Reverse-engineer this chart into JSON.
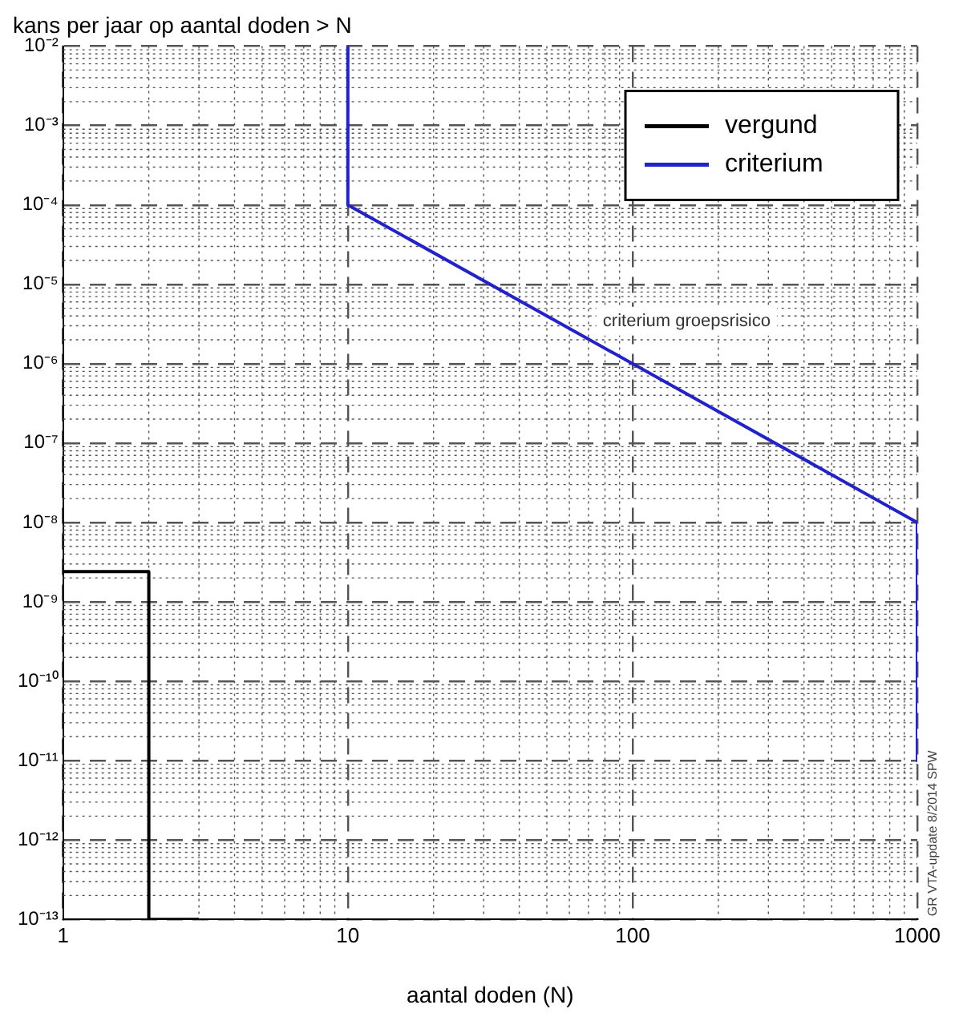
{
  "chart_data": {
    "type": "line",
    "title": "kans per jaar op aantal doden > N",
    "xlabel": "aantal doden (N)",
    "log": "xy",
    "grid": true,
    "legend": "top right",
    "marker": "none",
    "line_style": "solid",
    "xlim": [
      1,
      1000
    ],
    "xticks": [
      1,
      10,
      100,
      1000
    ],
    "ylim": [
      1e-13,
      0.01
    ],
    "yticks": [
      {
        "value": 1e-13,
        "label": "10⁻¹³"
      },
      {
        "value": 1e-12,
        "label": "10⁻¹²"
      },
      {
        "value": 1e-11,
        "label": "10⁻¹¹"
      },
      {
        "value": 1e-10,
        "label": "10⁻¹⁰"
      },
      {
        "value": 1e-09,
        "label": "10⁻⁹"
      },
      {
        "value": 1e-08,
        "label": "10⁻⁸"
      },
      {
        "value": 1e-07,
        "label": "10⁻⁷"
      },
      {
        "value": 1e-06,
        "label": "10⁻⁶"
      },
      {
        "value": 1e-05,
        "label": "10⁻⁵"
      },
      {
        "value": 0.0001,
        "label": "10⁻⁴"
      },
      {
        "value": 0.001,
        "label": "10⁻³"
      },
      {
        "value": 0.01,
        "label": "10⁻²"
      }
    ],
    "series": [
      {
        "name": "vergund",
        "color": "#000000",
        "x": [
          1,
          2,
          2,
          3
        ],
        "values": [
          2.4e-09,
          2.4e-09,
          1e-13,
          1e-13
        ]
      },
      {
        "name": "criterium",
        "color": "#2222cc",
        "x": [
          10,
          10,
          1000,
          1000
        ],
        "values": [
          0.01,
          0.0001,
          1e-08,
          1e-11
        ]
      }
    ],
    "annotations": [
      "criterium groepsrisico",
      "GR VTA-update 8/2014 SPW"
    ]
  }
}
